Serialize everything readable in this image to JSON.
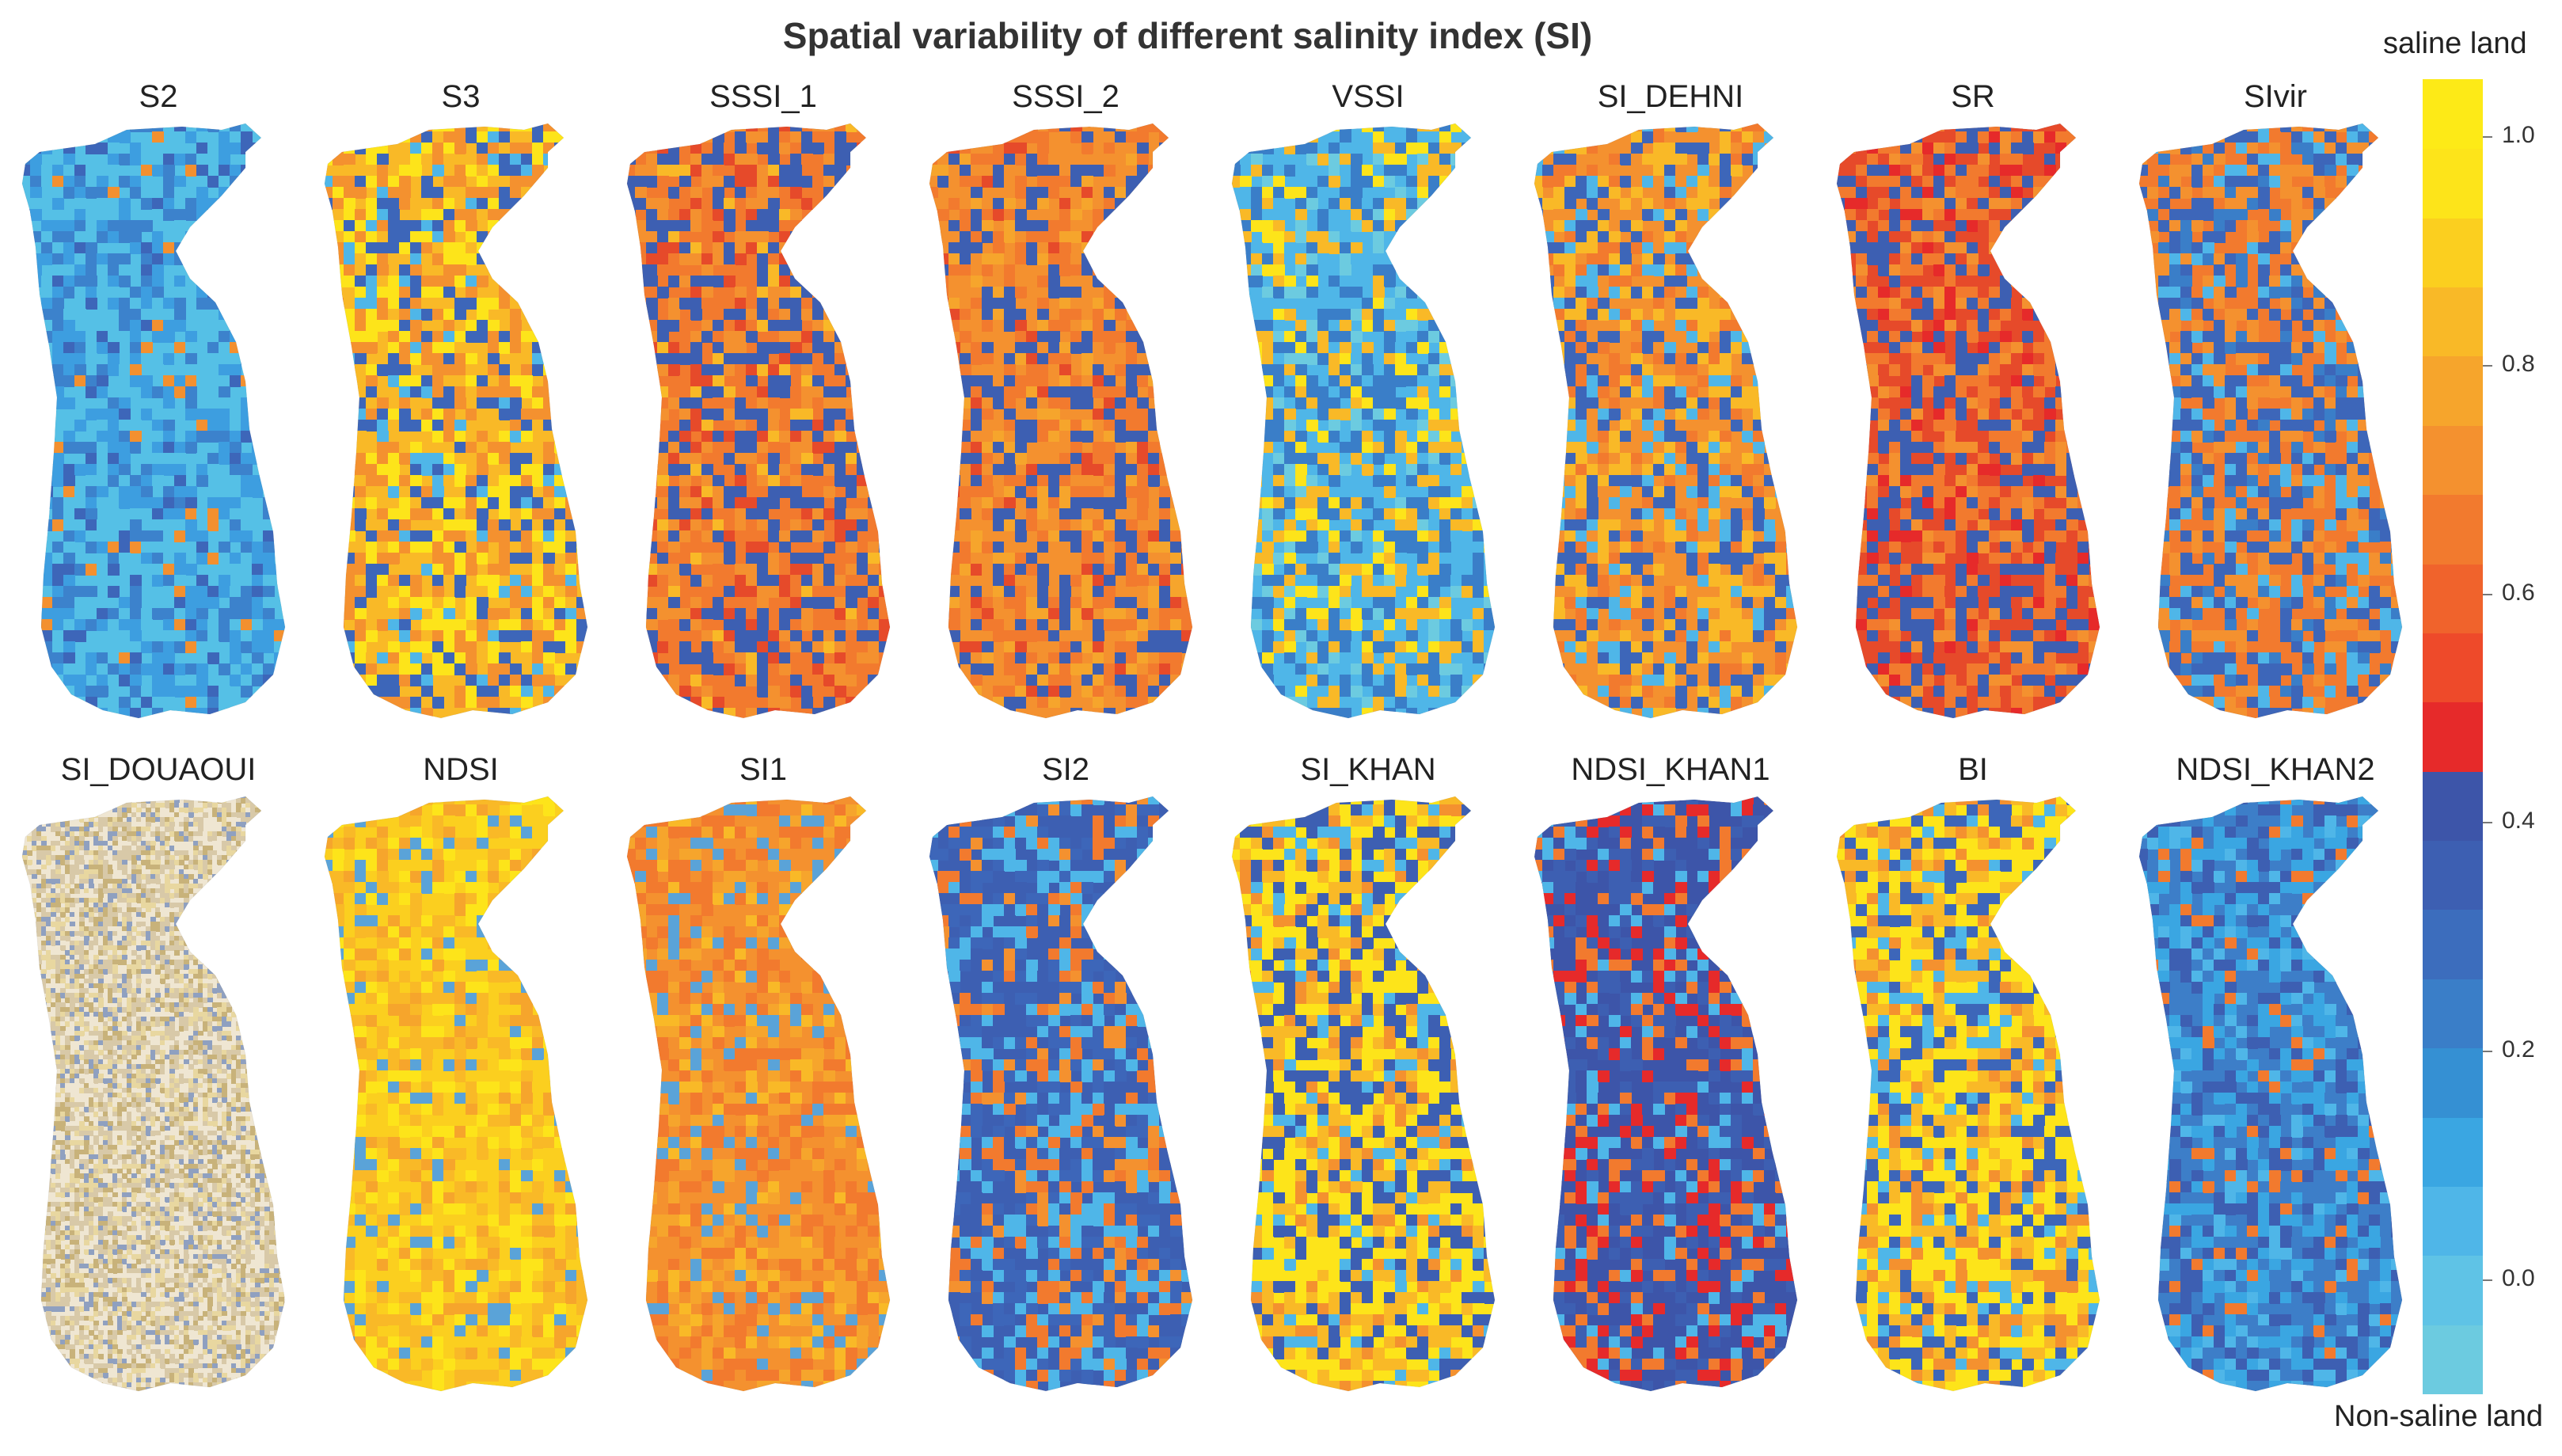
{
  "figure": {
    "title": "Spatial variability of different salinity index (SI)",
    "legend_top": "saline land",
    "legend_bottom": "Non-saline land"
  },
  "colorbar": {
    "ticks": [
      "1.0",
      "0.8",
      "0.6",
      "0.4",
      "0.2",
      "0.0"
    ],
    "range": [
      -0.1,
      1.05
    ],
    "colors": [
      "#6ccbe0",
      "#5fc3e6",
      "#4fb6e8",
      "#3aa6e2",
      "#3590d3",
      "#3a7ec8",
      "#3c6dbd",
      "#3d5fb2",
      "#3d55a9",
      "#e62a2a",
      "#ee4a2a",
      "#f0632c",
      "#f27a2e",
      "#f4912f",
      "#f6a52c",
      "#f9b927",
      "#fbcf1f",
      "#fde41a",
      "#fdea17"
    ]
  },
  "panels": [
    {
      "label": "S2",
      "palette": [
        "#55c0e6",
        "#3d9ee0",
        "#3c82cc",
        "#3d66b9",
        "#f3902f"
      ],
      "weights": [
        0.45,
        0.25,
        0.18,
        0.08,
        0.04
      ]
    },
    {
      "label": "S3",
      "palette": [
        "#f9b927",
        "#fde41a",
        "#f4912f",
        "#3d66b9",
        "#4fb6e8"
      ],
      "weights": [
        0.28,
        0.22,
        0.25,
        0.18,
        0.07
      ]
    },
    {
      "label": "SSSI_1",
      "palette": [
        "#f27a2e",
        "#3d5fb2",
        "#f4912f",
        "#e64a2a",
        "#f9b927"
      ],
      "weights": [
        0.35,
        0.3,
        0.18,
        0.1,
        0.07
      ]
    },
    {
      "label": "SSSI_2",
      "palette": [
        "#f4912f",
        "#f27a2e",
        "#3d5fb2",
        "#f6a52c",
        "#e64a2a"
      ],
      "weights": [
        0.35,
        0.25,
        0.22,
        0.12,
        0.06
      ]
    },
    {
      "label": "VSSI",
      "palette": [
        "#4fb6e8",
        "#3a7ec8",
        "#f9b927",
        "#fde41a",
        "#6ccbe0"
      ],
      "weights": [
        0.35,
        0.25,
        0.18,
        0.1,
        0.12
      ]
    },
    {
      "label": "SI_DEHNI",
      "palette": [
        "#f4912f",
        "#f9b927",
        "#3d66b9",
        "#4fb6e8",
        "#f27a2e"
      ],
      "weights": [
        0.3,
        0.22,
        0.22,
        0.12,
        0.14
      ]
    },
    {
      "label": "SR",
      "palette": [
        "#e64a2a",
        "#f27a2e",
        "#3d5fb2",
        "#f4912f",
        "#e62a2a"
      ],
      "weights": [
        0.3,
        0.25,
        0.25,
        0.12,
        0.08
      ]
    },
    {
      "label": "SIvir",
      "palette": [
        "#f27a2e",
        "#3d66b9",
        "#f4912f",
        "#4fb6e8",
        "#3a7ec8"
      ],
      "weights": [
        0.3,
        0.25,
        0.2,
        0.12,
        0.13
      ]
    },
    {
      "label": "SI_DOUAOUI",
      "palette": [
        "#efe6d2",
        "#d8c9a8",
        "#c8b27a",
        "#8fa0c0",
        "#e8d7a0"
      ],
      "weights": [
        0.35,
        0.25,
        0.15,
        0.1,
        0.15
      ]
    },
    {
      "label": "NDSI",
      "palette": [
        "#fbcf1f",
        "#f9b927",
        "#fde41a",
        "#f6a52c",
        "#5aa3d8"
      ],
      "weights": [
        0.35,
        0.25,
        0.2,
        0.12,
        0.08
      ]
    },
    {
      "label": "SI1",
      "palette": [
        "#f4912f",
        "#f27a2e",
        "#f6a52c",
        "#5aa3d8",
        "#f9b927"
      ],
      "weights": [
        0.35,
        0.25,
        0.18,
        0.12,
        0.1
      ]
    },
    {
      "label": "SI2",
      "palette": [
        "#3d5fb2",
        "#3d66b9",
        "#4fb6e8",
        "#f27a2e",
        "#f4912f"
      ],
      "weights": [
        0.35,
        0.2,
        0.2,
        0.15,
        0.1
      ]
    },
    {
      "label": "SI_KHAN",
      "palette": [
        "#fde41a",
        "#f9b927",
        "#3d5fb2",
        "#f4912f",
        "#4fb6e8"
      ],
      "weights": [
        0.35,
        0.2,
        0.25,
        0.1,
        0.1
      ]
    },
    {
      "label": "NDSI_KHAN1",
      "palette": [
        "#3d55a9",
        "#3d5fb2",
        "#e62a2a",
        "#f27a2e",
        "#4fb6e8"
      ],
      "weights": [
        0.45,
        0.2,
        0.12,
        0.13,
        0.1
      ]
    },
    {
      "label": "BI",
      "palette": [
        "#fde41a",
        "#f9b927",
        "#3d66b9",
        "#f4912f",
        "#4fb6e8"
      ],
      "weights": [
        0.35,
        0.2,
        0.2,
        0.15,
        0.1
      ]
    },
    {
      "label": "NDSI_KHAN2",
      "palette": [
        "#3d7ec8",
        "#3aa6e2",
        "#3d5fb2",
        "#4fb6e8",
        "#f27a2e"
      ],
      "weights": [
        0.35,
        0.25,
        0.2,
        0.12,
        0.08
      ]
    }
  ]
}
